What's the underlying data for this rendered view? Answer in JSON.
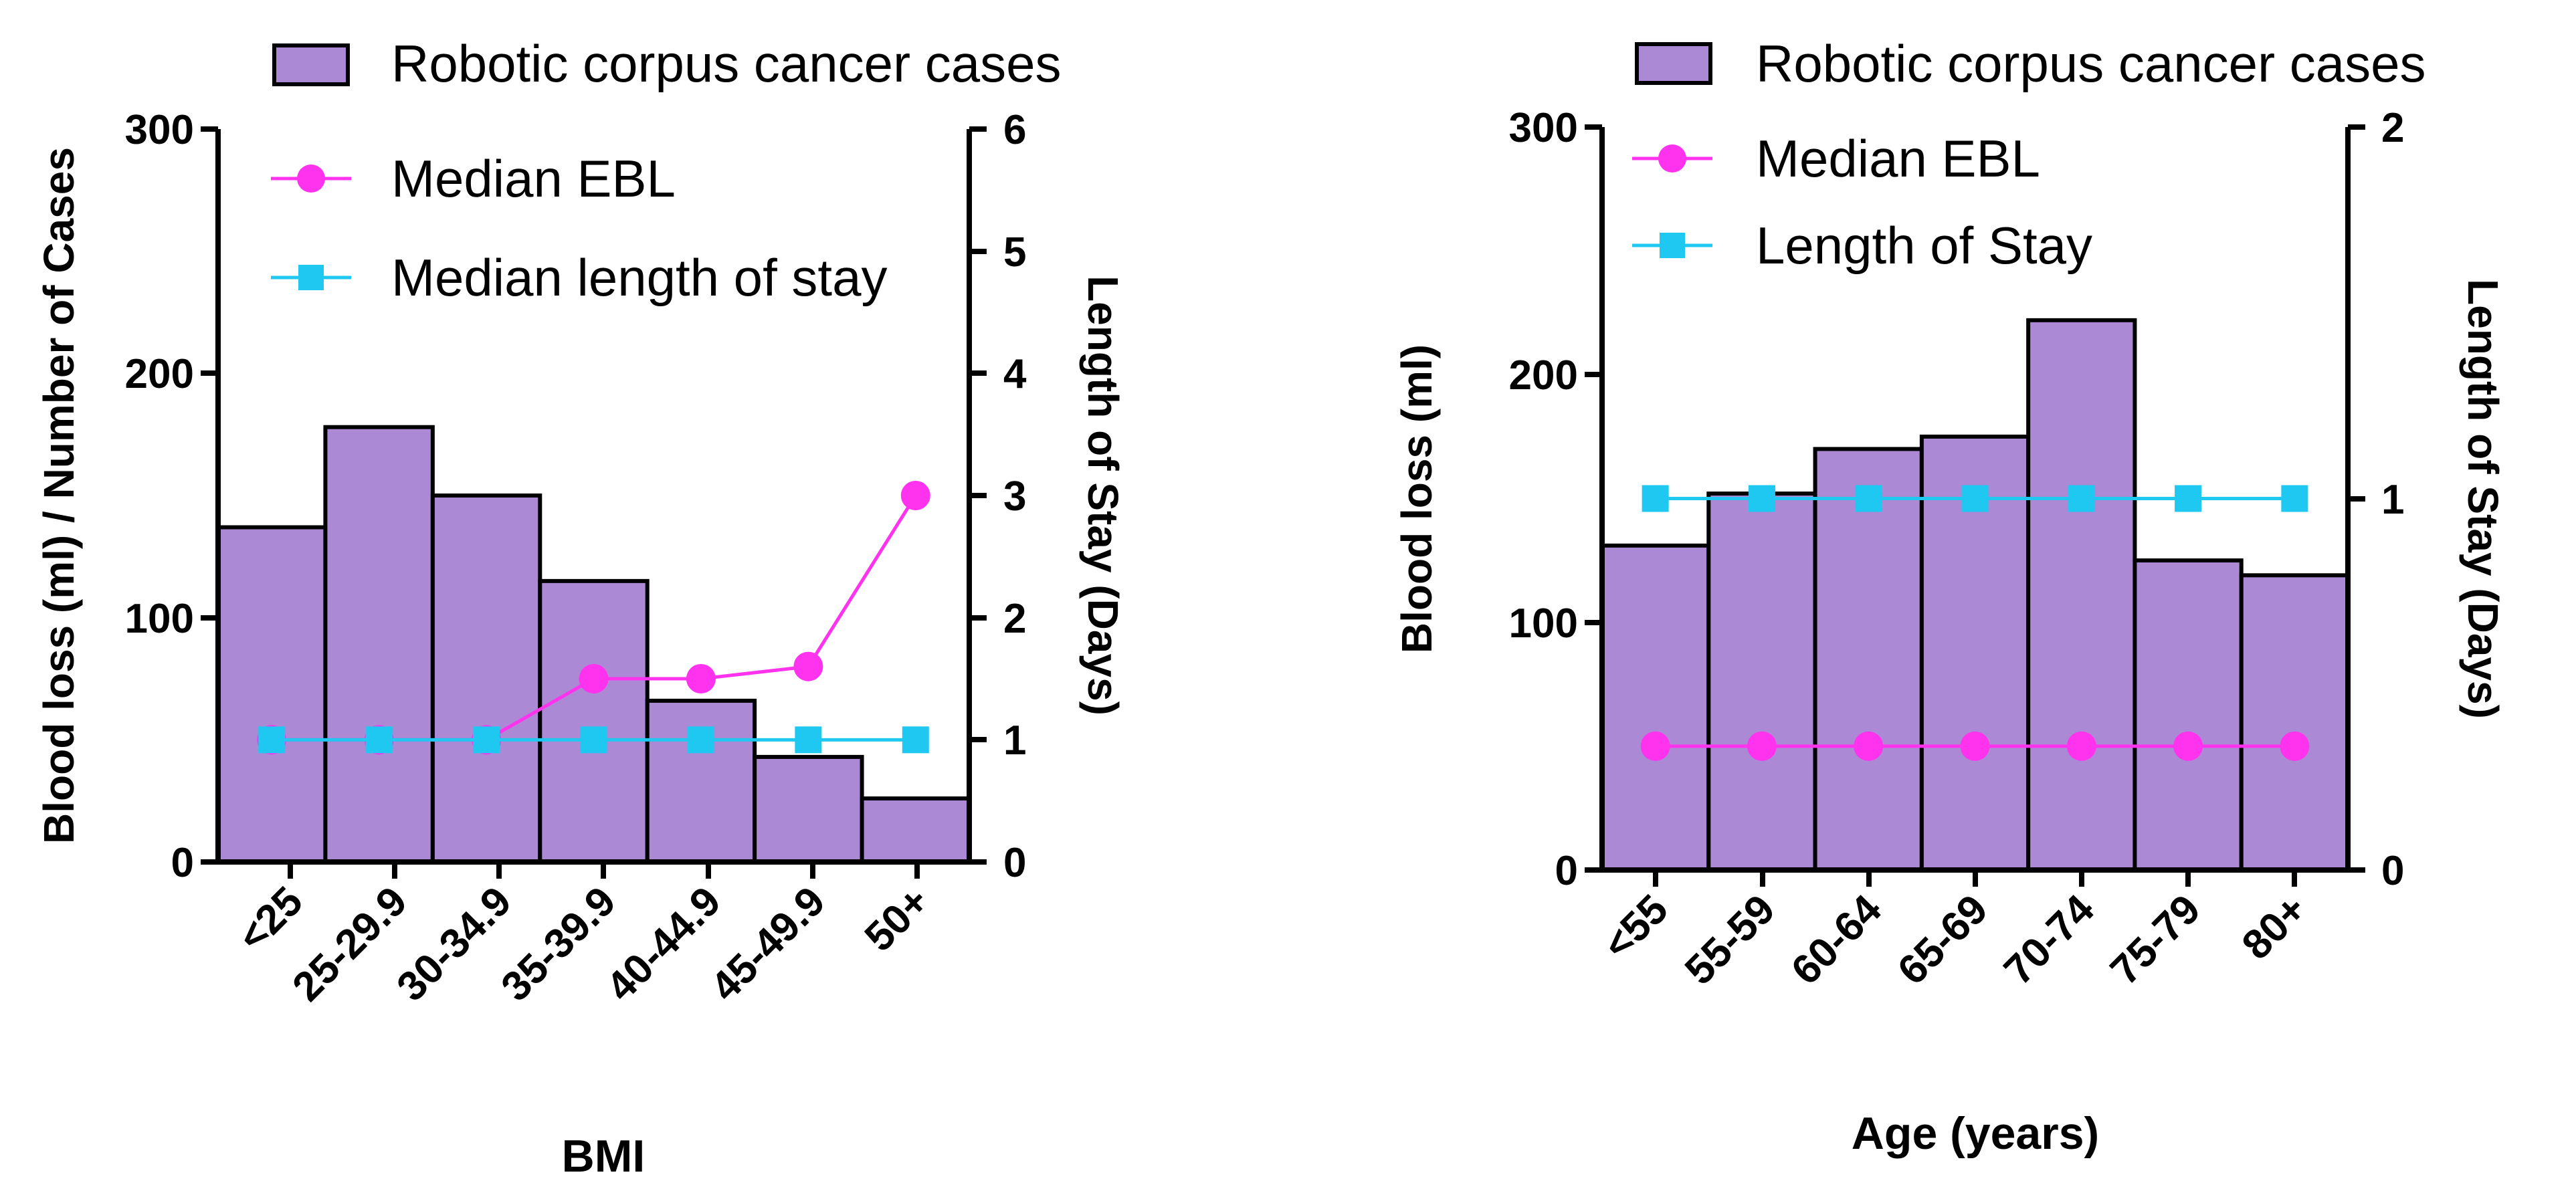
{
  "chart_data": [
    {
      "type": "bar",
      "xlabel": "BMI",
      "ylabel": "Blood loss (ml) / Number of Cases",
      "y2label": "Length of Stay (Days)",
      "categories": [
        "<25",
        "25-29.9",
        "30-34.9",
        "35-39.9",
        "40-44.9",
        "45-49.9",
        "50+"
      ],
      "ylim": [
        0,
        300
      ],
      "y2lim": [
        0,
        6
      ],
      "yticks": [
        "0",
        "100",
        "200",
        "300"
      ],
      "y2ticks": [
        "0",
        "1",
        "2",
        "3",
        "4",
        "5",
        "6"
      ],
      "series": [
        {
          "name": "Robotic corpus cancer cases",
          "kind": "bar",
          "axis": "left",
          "color": "#ab89d5",
          "values": [
            137,
            178,
            150,
            115,
            66,
            43,
            26
          ]
        },
        {
          "name": "Median EBL",
          "kind": "line",
          "marker": "circle",
          "axis": "left",
          "color": "#ff33ee",
          "values": [
            50,
            50,
            50,
            75,
            75,
            80,
            150
          ]
        },
        {
          "name": "Median length of stay",
          "kind": "line",
          "marker": "square",
          "axis": "right",
          "color": "#1ec8f0",
          "values": [
            1,
            1,
            1,
            1,
            1,
            1,
            1
          ]
        }
      ]
    },
    {
      "type": "bar",
      "xlabel": "Age (years)",
      "ylabel": "Blood loss (ml)",
      "y2label": "Length of Stay (Days)",
      "categories": [
        "<55",
        "55-59",
        "60-64",
        "65-69",
        "70-74",
        "75-79",
        "80+"
      ],
      "ylim": [
        0,
        300
      ],
      "y2lim": [
        0,
        2
      ],
      "yticks": [
        "0",
        "100",
        "200",
        "300"
      ],
      "y2ticks": [
        "0",
        "1",
        "2"
      ],
      "series": [
        {
          "name": "Robotic corpus cancer cases",
          "kind": "bar",
          "axis": "left",
          "color": "#ab89d5",
          "values": [
            131,
            152,
            170,
            175,
            222,
            125,
            119
          ]
        },
        {
          "name": "Median EBL",
          "kind": "line",
          "marker": "circle",
          "axis": "left",
          "color": "#ff33ee",
          "values": [
            50,
            50,
            50,
            50,
            50,
            50,
            50
          ]
        },
        {
          "name": "Length of Stay",
          "kind": "line",
          "marker": "square",
          "axis": "right",
          "color": "#1ec8f0",
          "values": [
            1,
            1,
            1,
            1,
            1,
            1,
            1
          ]
        }
      ]
    }
  ]
}
